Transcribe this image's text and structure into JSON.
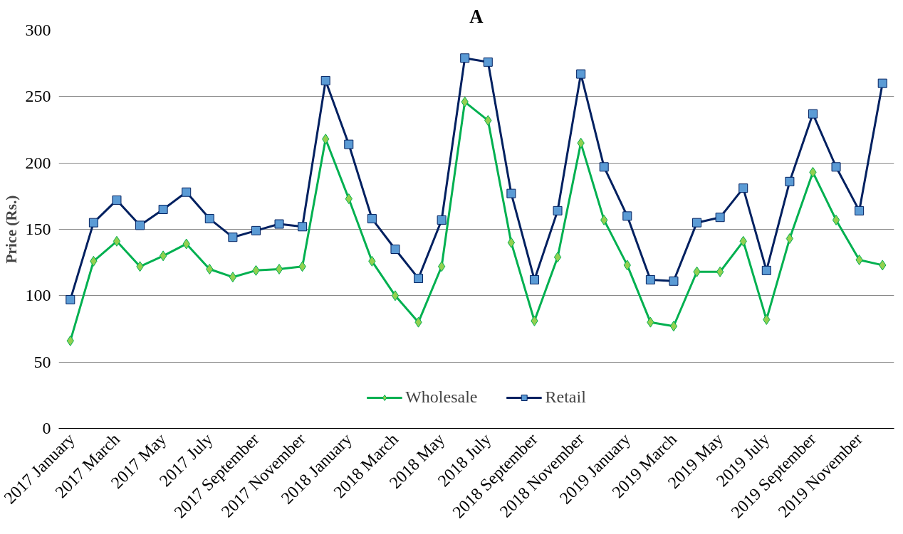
{
  "chart_data": {
    "type": "line",
    "title": "A",
    "ylabel": "Price (Rs.)",
    "categories": [
      "2017 January",
      null,
      "2017 March",
      null,
      "2017 May",
      null,
      "2017 July",
      null,
      "2017 September",
      null,
      "2017 November",
      null,
      "2018 January",
      null,
      "2018 March",
      null,
      "2018 May",
      null,
      "2018 July",
      null,
      "2018 September",
      null,
      "2018 November",
      null,
      "2019 January",
      null,
      "2019 March",
      null,
      "2019 May",
      null,
      "2019 July",
      null,
      "2019 September",
      null,
      "2019 November",
      null
    ],
    "series": [
      {
        "name": "Wholesale",
        "color": "#00b050",
        "marker": "diamond",
        "values": [
          66,
          126,
          141,
          122,
          130,
          139,
          120,
          114,
          119,
          120,
          122,
          218,
          173,
          126,
          100,
          80,
          122,
          246,
          232,
          140,
          81,
          129,
          215,
          157,
          123,
          80,
          77,
          118,
          118,
          141,
          82,
          143,
          193,
          157,
          127,
          123
        ]
      },
      {
        "name": "Retail",
        "color": "#002060",
        "marker": "square",
        "values": [
          97,
          155,
          172,
          153,
          165,
          178,
          158,
          144,
          149,
          154,
          152,
          262,
          214,
          158,
          135,
          113,
          157,
          279,
          276,
          177,
          112,
          164,
          267,
          197,
          160,
          112,
          111,
          155,
          159,
          181,
          119,
          186,
          237,
          197,
          164,
          260
        ]
      }
    ],
    "ylim": [
      0,
      300
    ],
    "yticks": [
      0,
      50,
      100,
      150,
      200,
      250,
      300
    ],
    "grid": "y",
    "legend": "bottom",
    "line_style": "solid"
  }
}
